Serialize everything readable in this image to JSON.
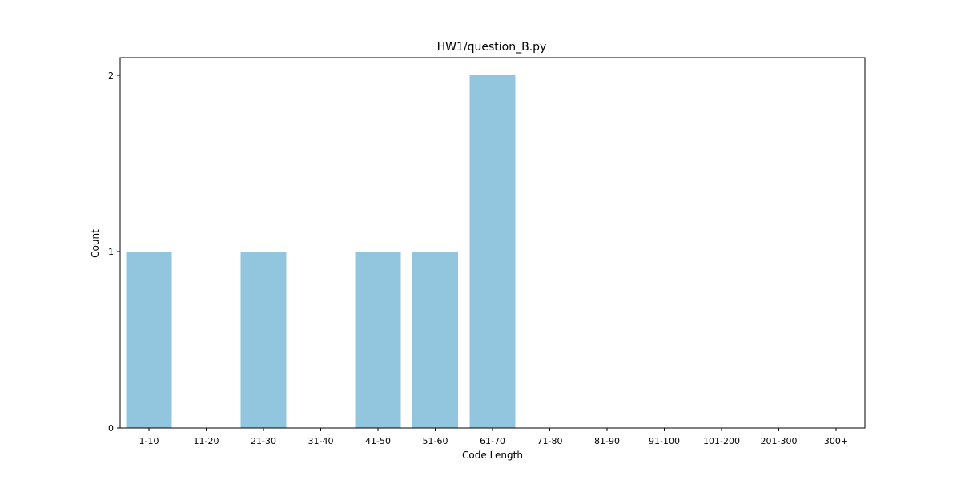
{
  "chart_data": {
    "type": "bar",
    "title": "HW1/question_B.py",
    "xlabel": "Code Length",
    "ylabel": "Count",
    "categories": [
      "1-10",
      "11-20",
      "21-30",
      "31-40",
      "41-50",
      "51-60",
      "61-70",
      "71-80",
      "81-90",
      "91-100",
      "101-200",
      "201-300",
      "300+"
    ],
    "values": [
      1,
      0,
      1,
      0,
      1,
      1,
      2,
      0,
      0,
      0,
      0,
      0,
      0
    ],
    "yticks": [
      0,
      1,
      2
    ],
    "ylim": [
      0,
      2.1
    ],
    "grid": false,
    "legend": "none",
    "bar_color": "#92c5de"
  }
}
